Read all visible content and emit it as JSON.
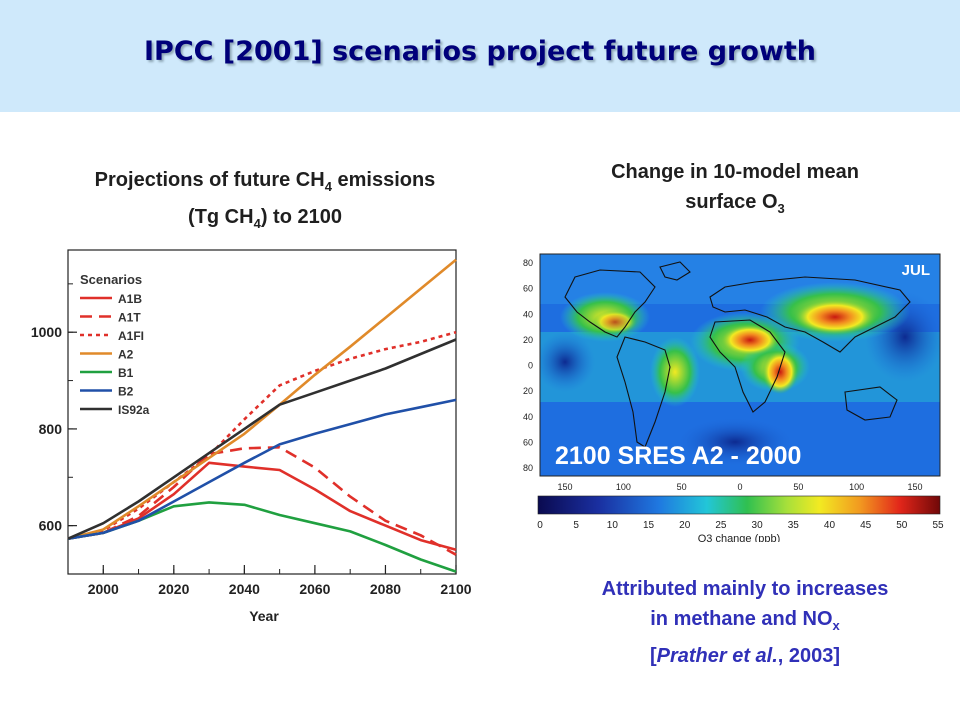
{
  "slide": {
    "title": "IPCC [2001] scenarios project future growth"
  },
  "left_caption": {
    "line1_pre": "Projections of future CH",
    "line1_sub": "4",
    "line1_post": " emissions",
    "line2_pre": "(Tg CH",
    "line2_sub": "4",
    "line2_post": ") to 2100"
  },
  "right_caption": {
    "line1": "Change in 10-model mean",
    "line2_pre": "surface O",
    "line2_sub": "3"
  },
  "note": {
    "line1": "Attributed mainly to increases",
    "line2_pre": "in methane and NO",
    "line2_sub": "x",
    "line3_pre": "[",
    "line3_italic": "Prather et al.",
    "line3_post": ", 2003]"
  },
  "map": {
    "month_label": "JUL",
    "scenario_label": "2100 SRES A2 - 2000",
    "lat_ticks": [
      "80",
      "60",
      "40",
      "20",
      "0",
      "20",
      "40",
      "60",
      "80"
    ],
    "lon_ticks": [
      "150",
      "100",
      "50",
      "0",
      "50",
      "100",
      "150"
    ],
    "colorbar_ticks": [
      "0",
      "5",
      "10",
      "15",
      "20",
      "25",
      "30",
      "35",
      "40",
      "45",
      "50",
      "55"
    ],
    "colorbar_label": "O3 change (ppb)",
    "colors": {
      "background": "#1e6ee0",
      "ocean_deep": "#1a3fb0",
      "land_low": "#23c7d0",
      "mid": "#36c04a",
      "high": "#f2ea22",
      "peak": "#e8261a",
      "max": "#b01010"
    }
  },
  "chart_data": {
    "type": "line",
    "title": "",
    "xlabel": "Year",
    "ylabel": "",
    "xlim": [
      1990,
      2100
    ],
    "ylim": [
      500,
      1170
    ],
    "x_ticks": [
      2000,
      2020,
      2040,
      2060,
      2080,
      2100
    ],
    "y_ticks": [
      600,
      800,
      1000
    ],
    "grid": false,
    "legend_title": "Scenarios",
    "legend_position": "top-left",
    "series": [
      {
        "name": "A1B",
        "color": "#e0302a",
        "style": "solid",
        "x": [
          1990,
          2000,
          2010,
          2020,
          2030,
          2040,
          2050,
          2060,
          2070,
          2080,
          2090,
          2100
        ],
        "y": [
          573,
          585,
          615,
          665,
          730,
          722,
          715,
          675,
          630,
          600,
          570,
          550
        ]
      },
      {
        "name": "A1T",
        "color": "#e0302a",
        "style": "dashed",
        "x": [
          1990,
          2000,
          2010,
          2020,
          2030,
          2040,
          2050,
          2060,
          2070,
          2080,
          2090,
          2100
        ],
        "y": [
          573,
          585,
          620,
          680,
          748,
          760,
          762,
          720,
          660,
          610,
          580,
          540
        ]
      },
      {
        "name": "A1FI",
        "color": "#e0302a",
        "style": "dotted",
        "x": [
          1990,
          2000,
          2010,
          2020,
          2030,
          2040,
          2050,
          2060,
          2070,
          2080,
          2090,
          2100
        ],
        "y": [
          573,
          590,
          635,
          690,
          745,
          820,
          890,
          920,
          945,
          965,
          980,
          1000
        ]
      },
      {
        "name": "A2",
        "color": "#e08a2a",
        "style": "solid",
        "x": [
          1990,
          2000,
          2010,
          2020,
          2030,
          2040,
          2050,
          2060,
          2070,
          2080,
          2090,
          2100
        ],
        "y": [
          573,
          592,
          640,
          690,
          740,
          790,
          850,
          912,
          970,
          1030,
          1090,
          1150
        ]
      },
      {
        "name": "B1",
        "color": "#20a040",
        "style": "solid",
        "x": [
          1990,
          2000,
          2010,
          2020,
          2030,
          2040,
          2050,
          2060,
          2070,
          2080,
          2090,
          2100
        ],
        "y": [
          573,
          585,
          610,
          640,
          648,
          643,
          622,
          605,
          588,
          560,
          530,
          505
        ]
      },
      {
        "name": "B2",
        "color": "#2050a8",
        "style": "solid",
        "x": [
          1990,
          2000,
          2010,
          2020,
          2030,
          2040,
          2050,
          2060,
          2070,
          2080,
          2090,
          2100
        ],
        "y": [
          573,
          585,
          610,
          650,
          690,
          730,
          768,
          790,
          810,
          830,
          845,
          860
        ]
      },
      {
        "name": "IS92a",
        "color": "#303030",
        "style": "solid",
        "x": [
          1990,
          2000,
          2010,
          2020,
          2030,
          2040,
          2050,
          2060,
          2070,
          2080,
          2090,
          2100
        ],
        "y": [
          573,
          605,
          650,
          700,
          750,
          800,
          850,
          875,
          900,
          925,
          955,
          985
        ]
      }
    ]
  }
}
